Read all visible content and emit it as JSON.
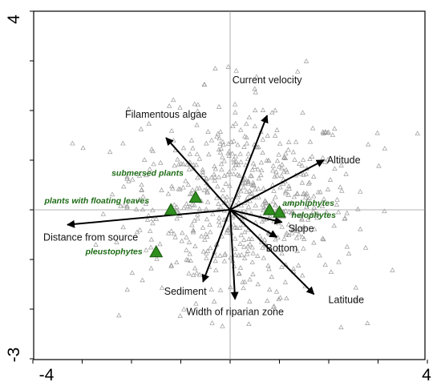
{
  "chart_data": {
    "type": "scatter",
    "title": "",
    "xlabel": "",
    "ylabel": "",
    "xlim": [
      -4,
      4
    ],
    "ylim": [
      -3,
      4
    ],
    "x_tick_labels": [
      "-4",
      "4"
    ],
    "y_tick_labels": [
      "4",
      "-3"
    ],
    "grid": false,
    "zero_lines": true,
    "colors": {
      "sites": "#9a9a9a",
      "arrows": "#000000",
      "groups_fill": "#2f8f1e",
      "groups_stroke": "#1f5f14",
      "group_labels": "#1e6b16"
    },
    "environmental_vectors": [
      {
        "name": "Current velocity",
        "x": 0.75,
        "y": 1.9
      },
      {
        "name": "Altitude",
        "x": 1.9,
        "y": 1.0
      },
      {
        "name": "Filamentous algae",
        "x": -1.3,
        "y": 1.45
      },
      {
        "name": "Distance from source",
        "x": -3.3,
        "y": -0.3
      },
      {
        "name": "Slope",
        "x": 1.05,
        "y": -0.25
      },
      {
        "name": "Bottom",
        "x": 0.95,
        "y": -0.55
      },
      {
        "name": "Latitude",
        "x": 1.7,
        "y": -1.7
      },
      {
        "name": "Sediment",
        "x": -0.55,
        "y": -1.45
      },
      {
        "name": "Width of riparian zone",
        "x": 0.1,
        "y": -1.8
      }
    ],
    "groups": [
      {
        "name": "submersed plants",
        "x": -0.7,
        "y": 0.25
      },
      {
        "name": "plants with floating leaves",
        "x": -1.2,
        "y": 0.0
      },
      {
        "name": "amphiphytes",
        "x": 0.8,
        "y": 0.0
      },
      {
        "name": "helophytes",
        "x": 1.0,
        "y": -0.05
      },
      {
        "name": "pleustophytes",
        "x": -1.5,
        "y": -0.85
      }
    ],
    "sites_series_name": "",
    "sites_count": 620
  }
}
